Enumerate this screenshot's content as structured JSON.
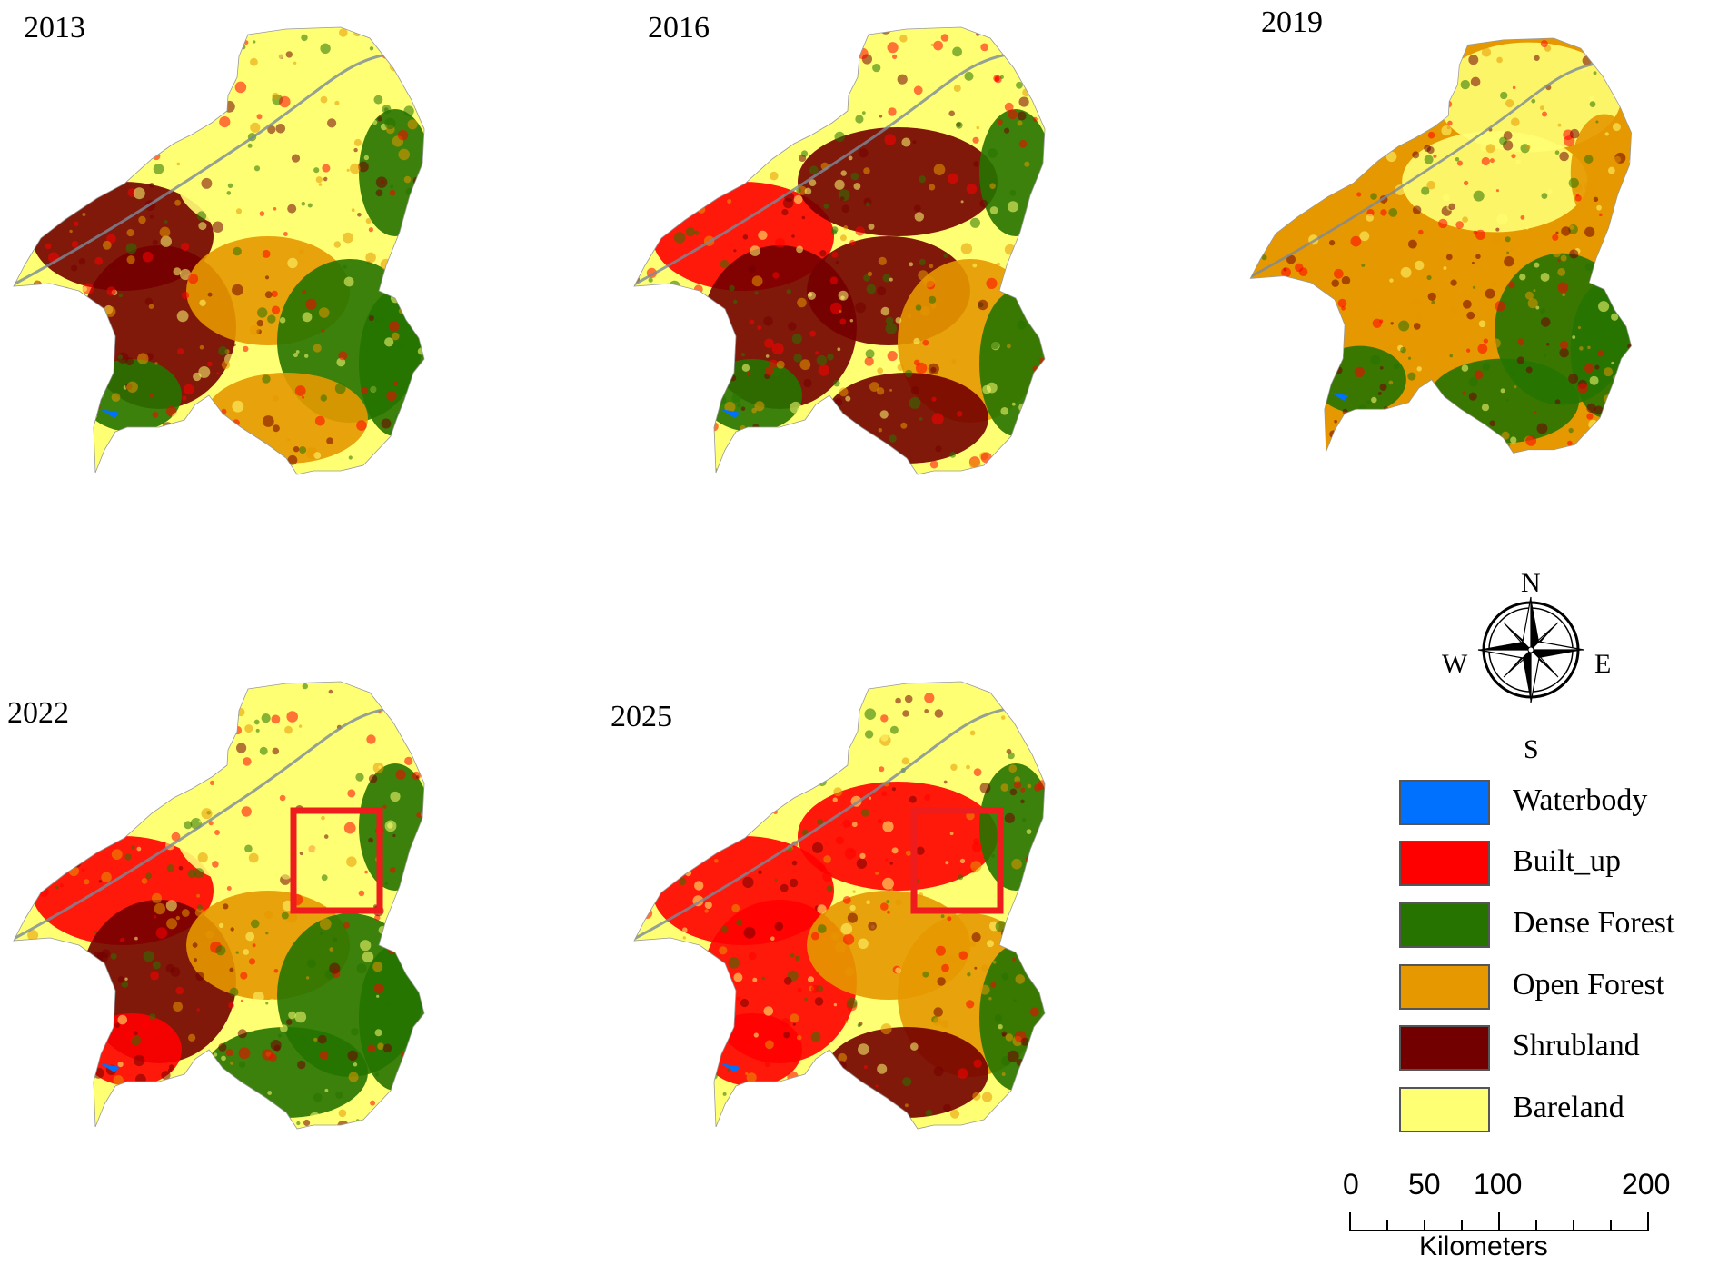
{
  "maps": [
    {
      "year": "2013",
      "highlight_box": false
    },
    {
      "year": "2016",
      "highlight_box": false
    },
    {
      "year": "2019",
      "highlight_box": false
    },
    {
      "year": "2022",
      "highlight_box": true
    },
    {
      "year": "2025",
      "highlight_box": true
    }
  ],
  "legend": [
    {
      "label": "Waterbody",
      "color": "#0070ff"
    },
    {
      "label": "Built_up",
      "color": "#ff0000"
    },
    {
      "label": "Dense Forest",
      "color": "#267300"
    },
    {
      "label": "Open Forest",
      "color": "#e69800"
    },
    {
      "label": "Shrubland",
      "color": "#730000"
    },
    {
      "label": "Bareland",
      "color": "#ffff73"
    }
  ],
  "compass": {
    "north": "N",
    "south": "S",
    "east": "E",
    "west": "W"
  },
  "scale_bar": {
    "ticks": [
      "0",
      "50",
      "100",
      "200"
    ],
    "unit": "Kilometers"
  },
  "highlight_color": "#ee1c1c"
}
